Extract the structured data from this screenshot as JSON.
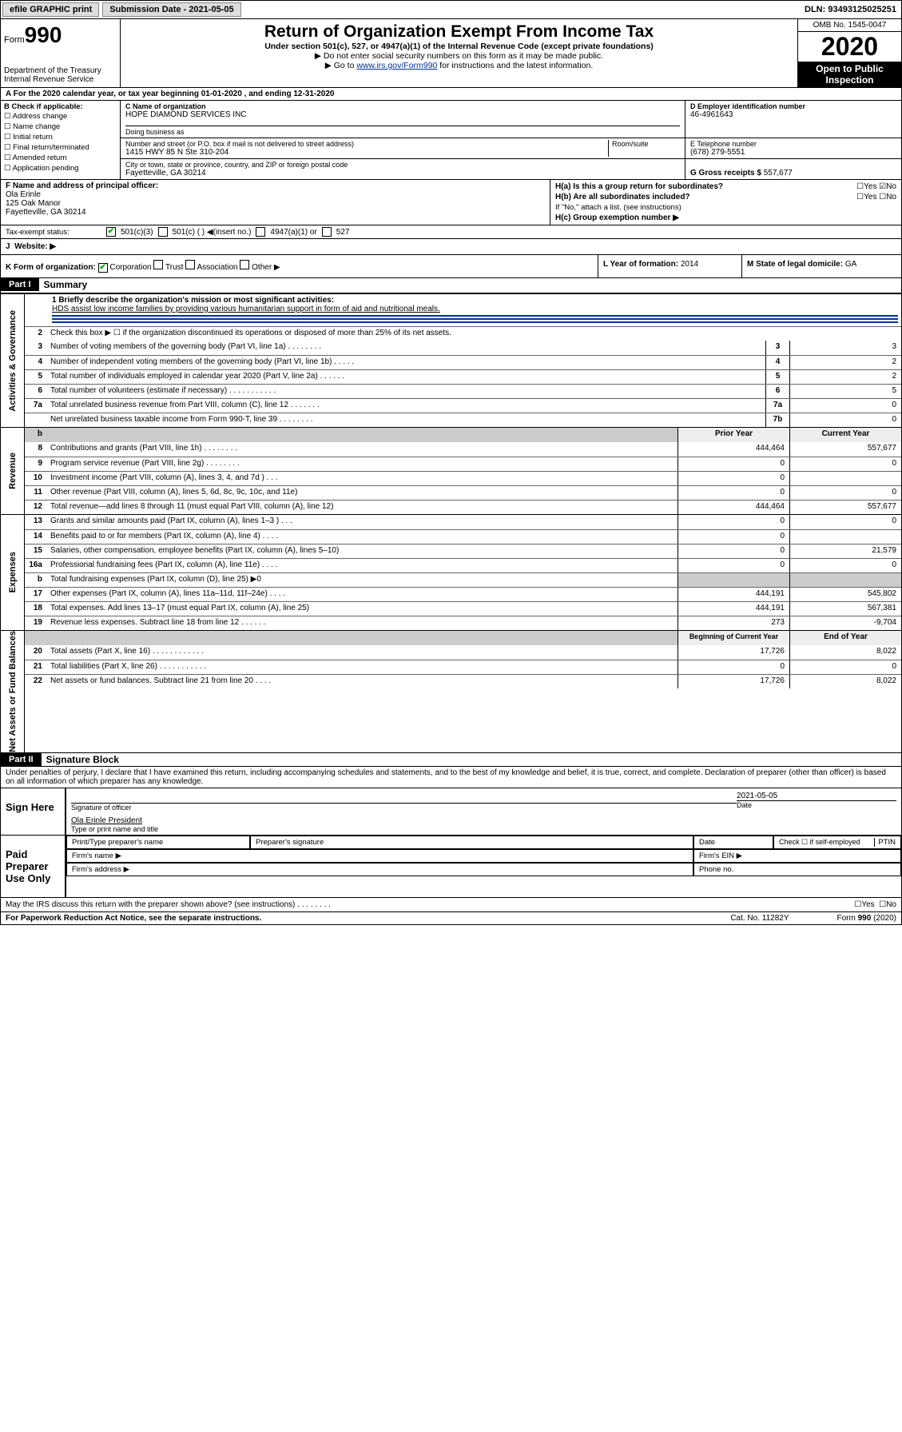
{
  "topbar": {
    "efile": "efile GRAPHIC print",
    "submission_label": "Submission Date - 2021-05-05",
    "dln": "DLN: 93493125025251"
  },
  "header": {
    "form_prefix": "Form",
    "form_number": "990",
    "dept": "Department of the Treasury\nInternal Revenue Service",
    "title": "Return of Organization Exempt From Income Tax",
    "subtitle": "Under section 501(c), 527, or 4947(a)(1) of the Internal Revenue Code (except private foundations)",
    "note1": "Do not enter social security numbers on this form as it may be made public.",
    "note2_pre": "Go to ",
    "note2_link": "www.irs.gov/Form990",
    "note2_post": " for instructions and the latest information.",
    "omb": "OMB No. 1545-0047",
    "year": "2020",
    "open": "Open to Public Inspection"
  },
  "line_a": "For the 2020 calendar year, or tax year beginning 01-01-2020    , and ending 12-31-2020",
  "box_b": {
    "title": "B Check if applicable:",
    "items": [
      "Address change",
      "Name change",
      "Initial return",
      "Final return/terminated",
      "Amended return",
      "Application pending"
    ]
  },
  "box_c": {
    "name_label": "C Name of organization",
    "name": "HOPE DIAMOND SERVICES INC",
    "dba_label": "Doing business as",
    "addr_label": "Number and street (or P.O. box if mail is not delivered to street address)",
    "room_label": "Room/suite",
    "addr": "1415 HWY 85 N Ste 310-204",
    "city_label": "City or town, state or province, country, and ZIP or foreign postal code",
    "city": "Fayetteville, GA   30214"
  },
  "box_d": {
    "label": "D Employer identification number",
    "value": "46-4961643"
  },
  "box_e": {
    "label": "E Telephone number",
    "value": "(678) 279-5551"
  },
  "box_g": {
    "label": "G Gross receipts $",
    "value": "557,677"
  },
  "box_f": {
    "label": "F  Name and address of principal officer:",
    "name": "Ola Erinle",
    "addr1": "125 Oak Manor",
    "addr2": "Fayetteville, GA  30214"
  },
  "box_h": {
    "a": "H(a)  Is this a group return for subordinates?",
    "a_yes": "Yes",
    "a_no": "No",
    "b": "H(b)  Are all subordinates included?",
    "b_note": "If \"No,\" attach a list. (see instructions)",
    "c": "H(c)  Group exemption number ▶"
  },
  "tax_status": {
    "label": "Tax-exempt status:",
    "opt1": "501(c)(3)",
    "opt2": "501(c) (  ) ◀(insert no.)",
    "opt3": "4947(a)(1) or",
    "opt4": "527"
  },
  "website": {
    "label_j": "J",
    "label": "Website: ▶"
  },
  "k": {
    "label": "K Form of organization:",
    "opts": [
      "Corporation",
      "Trust",
      "Association",
      "Other ▶"
    ]
  },
  "l": {
    "label": "L Year of formation:",
    "value": "2014"
  },
  "m": {
    "label": "M State of legal domicile:",
    "value": "GA"
  },
  "part1": {
    "header": "Part I",
    "title": "Summary",
    "mission_label": "1  Briefly describe the organization's mission or most significant activities:",
    "mission": "HDS assist low income families by providing various humanitarian support in form of aid and nutritional meals.",
    "line2": "Check this box ▶ ☐  if the organization discontinued its operations or disposed of more than 25% of its net assets.",
    "rows_gov": [
      {
        "n": "3",
        "label": "Number of voting members of the governing body (Part VI, line 1a)  .   .   .   .   .   .   .   .",
        "box": "3",
        "val": "3"
      },
      {
        "n": "4",
        "label": "Number of independent voting members of the governing body (Part VI, line 1b)   .   .   .   .   .",
        "box": "4",
        "val": "2"
      },
      {
        "n": "5",
        "label": "Total number of individuals employed in calendar year 2020 (Part V, line 2a)  .   .   .   .   .   .",
        "box": "5",
        "val": "2"
      },
      {
        "n": "6",
        "label": "Total number of volunteers (estimate if necessary)   .   .   .   .   .   .   .   .   .   .   .",
        "box": "6",
        "val": "5"
      },
      {
        "n": "7a",
        "label": "Total unrelated business revenue from Part VIII, column (C), line 12   .   .   .   .   .   .   .",
        "box": "7a",
        "val": "0"
      },
      {
        "n": "",
        "label": "Net unrelated business taxable income from Form 990-T, line 39   .   .   .   .   .   .   .   .",
        "box": "7b",
        "val": "0"
      }
    ],
    "col_heads": {
      "prior": "Prior Year",
      "current": "Current Year"
    },
    "rows_rev": [
      {
        "n": "8",
        "label": "Contributions and grants (Part VIII, line 1h)   .   .   .   .   .   .   .   .",
        "p": "444,464",
        "c": "557,677"
      },
      {
        "n": "9",
        "label": "Program service revenue (Part VIII, line 2g)   .   .   .   .   .   .   .   .",
        "p": "0",
        "c": "0"
      },
      {
        "n": "10",
        "label": "Investment income (Part VIII, column (A), lines 3, 4, and 7d )   .   .   .",
        "p": "0",
        "c": " "
      },
      {
        "n": "11",
        "label": "Other revenue (Part VIII, column (A), lines 5, 6d, 8c, 9c, 10c, and 11e)",
        "p": "0",
        "c": "0"
      },
      {
        "n": "12",
        "label": "Total revenue—add lines 8 through 11 (must equal Part VIII, column (A), line 12)",
        "p": "444,464",
        "c": "557,677"
      }
    ],
    "rows_exp": [
      {
        "n": "13",
        "label": "Grants and similar amounts paid (Part IX, column (A), lines 1–3 )   .   .   .",
        "p": "0",
        "c": "0"
      },
      {
        "n": "14",
        "label": "Benefits paid to or for members (Part IX, column (A), line 4)   .   .   .   .",
        "p": "0",
        "c": " "
      },
      {
        "n": "15",
        "label": "Salaries, other compensation, employee benefits (Part IX, column (A), lines 5–10)",
        "p": "0",
        "c": "21,579"
      },
      {
        "n": "16a",
        "label": "Professional fundraising fees (Part IX, column (A), line 11e)   .   .   .   .",
        "p": "0",
        "c": "0"
      },
      {
        "n": "b",
        "label": "Total fundraising expenses (Part IX, column (D), line 25) ▶0",
        "p": "shade",
        "c": "shade"
      },
      {
        "n": "17",
        "label": "Other expenses (Part IX, column (A), lines 11a–11d, 11f–24e)   .   .   .   .",
        "p": "444,191",
        "c": "545,802"
      },
      {
        "n": "18",
        "label": "Total expenses. Add lines 13–17 (must equal Part IX, column (A), line 25)",
        "p": "444,191",
        "c": "567,381"
      },
      {
        "n": "19",
        "label": "Revenue less expenses. Subtract line 18 from line 12   .   .   .   .   .   .",
        "p": "273",
        "c": "-9,704"
      }
    ],
    "col_heads2": {
      "begin": "Beginning of Current Year",
      "end": "End of Year"
    },
    "rows_net": [
      {
        "n": "20",
        "label": "Total assets (Part X, line 16)   .   .   .   .   .   .   .   .   .   .   .   .",
        "p": "17,726",
        "c": "8,022"
      },
      {
        "n": "21",
        "label": "Total liabilities (Part X, line 26)   .   .   .   .   .   .   .   .   .   .   .",
        "p": "0",
        "c": "0"
      },
      {
        "n": "22",
        "label": "Net assets or fund balances. Subtract line 21 from line 20   .   .   .   .",
        "p": "17,726",
        "c": "8,022"
      }
    ],
    "side_labels": {
      "gov": "Activities & Governance",
      "rev": "Revenue",
      "exp": "Expenses",
      "net": "Net Assets or Fund Balances"
    }
  },
  "part2": {
    "header": "Part II",
    "title": "Signature Block",
    "decl": "Under penalties of perjury, I declare that I have examined this return, including accompanying schedules and statements, and to the best of my knowledge and belief, it is true, correct, and complete. Declaration of preparer (other than officer) is based on all information of which preparer has any knowledge.",
    "sign_here": "Sign Here",
    "sig_officer": "Signature of officer",
    "date_val": "2021-05-05",
    "date": "Date",
    "name_title": "Ola Erinle  President",
    "name_title_label": "Type or print name and title",
    "paid": "Paid Preparer Use Only",
    "prep_name": "Print/Type preparer's name",
    "prep_sig": "Preparer's signature",
    "prep_date": "Date",
    "prep_check": "Check ☐ if self-employed",
    "ptin": "PTIN",
    "firm_name": "Firm's name   ▶",
    "firm_ein": "Firm's EIN ▶",
    "firm_addr": "Firm's address ▶",
    "phone": "Phone no.",
    "discuss": "May the IRS discuss this return with the preparer shown above? (see instructions)   .   .   .   .   .   .   .   .",
    "yes": "Yes",
    "no": "No"
  },
  "footer": {
    "paperwork": "For Paperwork Reduction Act Notice, see the separate instructions.",
    "cat": "Cat. No. 11282Y",
    "form": "Form 990 (2020)"
  }
}
